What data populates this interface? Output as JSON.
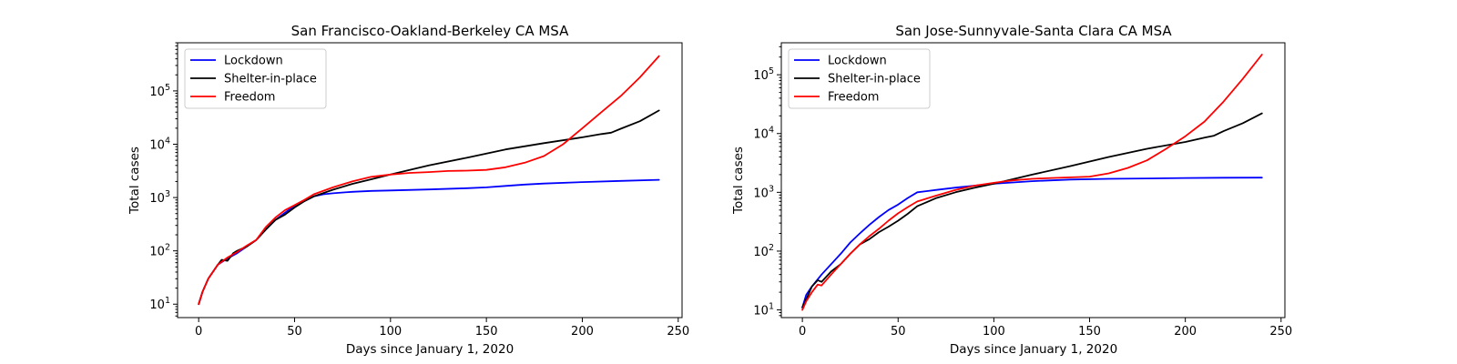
{
  "chart_data": [
    {
      "type": "line",
      "title": "San Francisco-Oakland-Berkeley CA MSA",
      "xlabel": "Days since January 1, 2020",
      "ylabel": "Total cases",
      "xlim": [
        -11,
        252
      ],
      "ylim": [
        5.6,
        800000
      ],
      "yscale": "log",
      "xticks": [
        0,
        50,
        100,
        150,
        200,
        250
      ],
      "xtick_labels": [
        "0",
        "50",
        "100",
        "150",
        "200",
        "250"
      ],
      "yticks": [
        10,
        100,
        1000,
        10000,
        100000
      ],
      "ytick_labels": [
        {
          "base": "10",
          "exp": "1"
        },
        {
          "base": "10",
          "exp": "2"
        },
        {
          "base": "10",
          "exp": "3"
        },
        {
          "base": "10",
          "exp": "4"
        },
        {
          "base": "10",
          "exp": "5"
        }
      ],
      "grid": false,
      "legend_position": "top-left",
      "series": [
        {
          "name": "Lockdown",
          "color": "#0000ff",
          "x": [
            0,
            2,
            5,
            10,
            15,
            20,
            25,
            30,
            35,
            40,
            45,
            50,
            55,
            60,
            65,
            70,
            80,
            90,
            100,
            120,
            140,
            150,
            160,
            170,
            180,
            200,
            220,
            240
          ],
          "y": [
            10,
            17,
            30,
            55,
            72,
            90,
            120,
            160,
            250,
            380,
            520,
            700,
            850,
            1050,
            1150,
            1200,
            1280,
            1330,
            1360,
            1420,
            1500,
            1550,
            1650,
            1750,
            1830,
            1950,
            2050,
            2150
          ]
        },
        {
          "name": "Shelter-in-place",
          "color": "#000000",
          "x": [
            0,
            2,
            5,
            10,
            12,
            15,
            18,
            20,
            25,
            30,
            35,
            40,
            45,
            50,
            55,
            60,
            70,
            80,
            90,
            100,
            120,
            140,
            160,
            180,
            200,
            210,
            215,
            220,
            230,
            240
          ],
          "y": [
            10,
            17,
            30,
            55,
            68,
            65,
            90,
            100,
            120,
            160,
            250,
            380,
            480,
            650,
            850,
            1050,
            1400,
            1800,
            2200,
            2700,
            4000,
            5600,
            8000,
            10500,
            13500,
            15500,
            16500,
            19500,
            27000,
            43000
          ]
        },
        {
          "name": "Freedom",
          "color": "#ff0000",
          "x": [
            0,
            2,
            5,
            10,
            15,
            20,
            25,
            30,
            35,
            40,
            45,
            50,
            55,
            60,
            70,
            80,
            90,
            100,
            110,
            120,
            130,
            140,
            150,
            160,
            170,
            180,
            190,
            200,
            210,
            220,
            230,
            240
          ],
          "y": [
            10,
            17,
            30,
            55,
            75,
            95,
            125,
            160,
            280,
            420,
            580,
            720,
            900,
            1150,
            1550,
            2000,
            2450,
            2700,
            2900,
            3000,
            3150,
            3200,
            3300,
            3700,
            4500,
            6000,
            10000,
            20000,
            40000,
            80000,
            180000,
            450000
          ]
        }
      ]
    },
    {
      "type": "line",
      "title": "San Jose-Sunnyvale-Santa Clara CA MSA",
      "xlabel": "Days since January 1, 2020",
      "ylabel": "Total cases",
      "xlim": [
        -11,
        252
      ],
      "ylim": [
        7.4,
        350000
      ],
      "yscale": "log",
      "xticks": [
        0,
        50,
        100,
        150,
        200,
        250
      ],
      "xtick_labels": [
        "0",
        "50",
        "100",
        "150",
        "200",
        "250"
      ],
      "yticks": [
        10,
        100,
        1000,
        10000,
        100000
      ],
      "ytick_labels": [
        {
          "base": "10",
          "exp": "1"
        },
        {
          "base": "10",
          "exp": "2"
        },
        {
          "base": "10",
          "exp": "3"
        },
        {
          "base": "10",
          "exp": "4"
        },
        {
          "base": "10",
          "exp": "5"
        }
      ],
      "grid": false,
      "legend_position": "top-left",
      "series": [
        {
          "name": "Lockdown",
          "color": "#0000ff",
          "x": [
            0,
            2,
            5,
            10,
            15,
            20,
            25,
            30,
            35,
            40,
            45,
            50,
            55,
            60,
            70,
            80,
            90,
            100,
            120,
            140,
            160,
            180,
            200,
            220,
            240
          ],
          "y": [
            11,
            18,
            25,
            40,
            60,
            90,
            140,
            200,
            280,
            380,
            500,
            620,
            800,
            1000,
            1100,
            1200,
            1300,
            1400,
            1550,
            1650,
            1700,
            1720,
            1750,
            1770,
            1780
          ]
        },
        {
          "name": "Shelter-in-place",
          "color": "#000000",
          "x": [
            0,
            2,
            5,
            8,
            10,
            15,
            20,
            25,
            30,
            35,
            40,
            45,
            50,
            55,
            60,
            70,
            80,
            90,
            100,
            120,
            140,
            160,
            180,
            200,
            210,
            215,
            220,
            230,
            240
          ],
          "y": [
            11,
            15,
            25,
            32,
            30,
            45,
            60,
            90,
            130,
            160,
            210,
            260,
            330,
            430,
            580,
            800,
            1000,
            1200,
            1400,
            2000,
            2800,
            4000,
            5500,
            7200,
            8500,
            9200,
            11000,
            15000,
            22000
          ]
        },
        {
          "name": "Freedom",
          "color": "#ff0000",
          "x": [
            0,
            2,
            5,
            8,
            10,
            15,
            20,
            25,
            30,
            35,
            40,
            45,
            50,
            55,
            60,
            70,
            80,
            90,
            100,
            110,
            120,
            130,
            140,
            150,
            160,
            170,
            180,
            190,
            200,
            210,
            220,
            230,
            240
          ],
          "y": [
            10,
            14,
            20,
            27,
            26,
            40,
            60,
            90,
            130,
            180,
            240,
            330,
            440,
            560,
            700,
            880,
            1100,
            1300,
            1450,
            1600,
            1700,
            1750,
            1800,
            1850,
            2100,
            2600,
            3500,
            5500,
            9000,
            16000,
            35000,
            85000,
            220000
          ]
        }
      ]
    }
  ]
}
